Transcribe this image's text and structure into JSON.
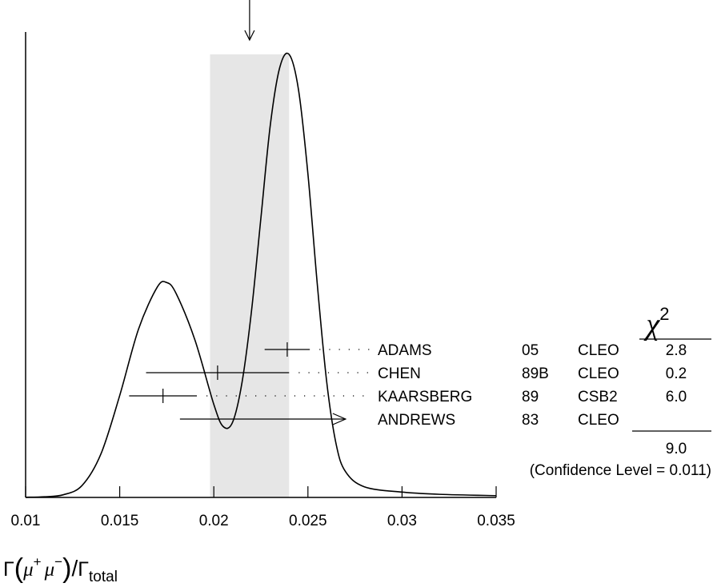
{
  "chart_data": {
    "type": "ideogram",
    "xlim": [
      0.01,
      0.035
    ],
    "x_ticks": [
      "0.01",
      "0.015",
      "0.02",
      "0.025",
      "0.03",
      "0.035"
    ],
    "x_tick_values": [
      0.01,
      0.015,
      0.02,
      0.025,
      0.03,
      0.035
    ],
    "xlabel": {
      "gamma": "Γ",
      "open_paren": "(",
      "mu": "μ",
      "plus": "+",
      "minus": "−",
      "close_paren": ")",
      "slash": "/",
      "total_sub": "total"
    },
    "average": {
      "value": 0.0219,
      "band": [
        0.0198,
        0.024
      ]
    },
    "curve": [
      [
        0.01,
        0.0004
      ],
      [
        0.011,
        0.0015
      ],
      [
        0.012,
        0.006
      ],
      [
        0.013,
        0.027
      ],
      [
        0.014,
        0.098
      ],
      [
        0.015,
        0.23
      ],
      [
        0.016,
        0.38
      ],
      [
        0.017,
        0.475
      ],
      [
        0.0175,
        0.485
      ],
      [
        0.018,
        0.46
      ],
      [
        0.019,
        0.355
      ],
      [
        0.02,
        0.21
      ],
      [
        0.0205,
        0.16
      ],
      [
        0.021,
        0.17
      ],
      [
        0.0215,
        0.26
      ],
      [
        0.022,
        0.42
      ],
      [
        0.0225,
        0.63
      ],
      [
        0.023,
        0.84
      ],
      [
        0.0235,
        0.97
      ],
      [
        0.024,
        1.0
      ],
      [
        0.0245,
        0.92
      ],
      [
        0.025,
        0.73
      ],
      [
        0.0255,
        0.48
      ],
      [
        0.026,
        0.26
      ],
      [
        0.0265,
        0.12
      ],
      [
        0.027,
        0.058
      ],
      [
        0.028,
        0.024
      ],
      [
        0.03,
        0.012
      ],
      [
        0.032,
        0.007
      ],
      [
        0.035,
        0.004
      ]
    ],
    "measurements": [
      {
        "author": "ADAMS",
        "year": "05",
        "experiment": "CLEO",
        "chi2": "2.8",
        "value": 0.0239,
        "lo": 0.0227,
        "hi": 0.0251,
        "limit": false
      },
      {
        "author": "CHEN",
        "year": "89B",
        "experiment": "CLEO",
        "chi2": "0.2",
        "value": 0.0202,
        "lo": 0.0164,
        "hi": 0.024,
        "limit": false
      },
      {
        "author": "KAARSBERG",
        "year": "89",
        "experiment": "CSB2",
        "chi2": "6.0",
        "value": 0.0173,
        "lo": 0.0155,
        "hi": 0.0191,
        "limit": false
      },
      {
        "author": "ANDREWS",
        "year": "83",
        "experiment": "CLEO",
        "chi2": "",
        "value": 0.0182,
        "lo": 0.0182,
        "hi": 0.027,
        "limit": true
      }
    ],
    "chi2_header": "χ",
    "chi2_header_sup": "2",
    "chi2_total": "9.0",
    "confidence_level": "(Confidence Level = 0.011)"
  }
}
